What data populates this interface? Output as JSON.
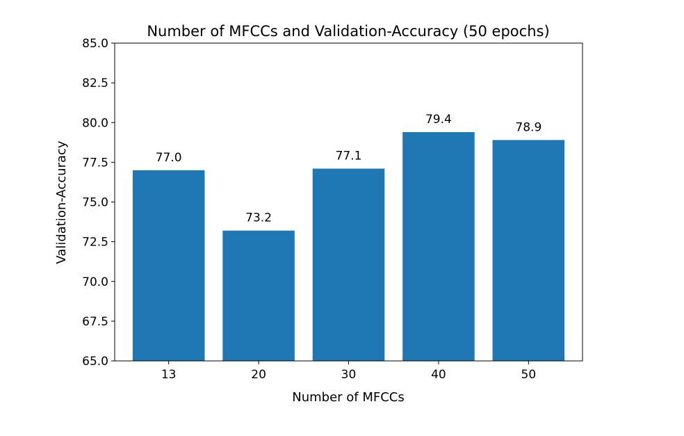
{
  "chart_data": {
    "type": "bar",
    "title": "Number of MFCCs and Validation-Accuracy (50 epochs)",
    "xlabel": "Number of MFCCs",
    "ylabel": "Validation-Accuracy",
    "categories": [
      "13",
      "20",
      "30",
      "40",
      "50"
    ],
    "values": [
      77.0,
      73.2,
      77.1,
      79.4,
      78.9
    ],
    "data_labels": [
      "77.0",
      "73.2",
      "77.1",
      "79.4",
      "78.9"
    ],
    "ylim": [
      65.0,
      85.0
    ],
    "yticks": [
      65.0,
      67.5,
      70.0,
      72.5,
      75.0,
      77.5,
      80.0,
      82.5,
      85.0
    ],
    "ytick_labels": [
      "65.0",
      "67.5",
      "70.0",
      "72.5",
      "75.0",
      "77.5",
      "80.0",
      "82.5",
      "85.0"
    ],
    "grid": false,
    "bar_color": "#1f77b4"
  }
}
